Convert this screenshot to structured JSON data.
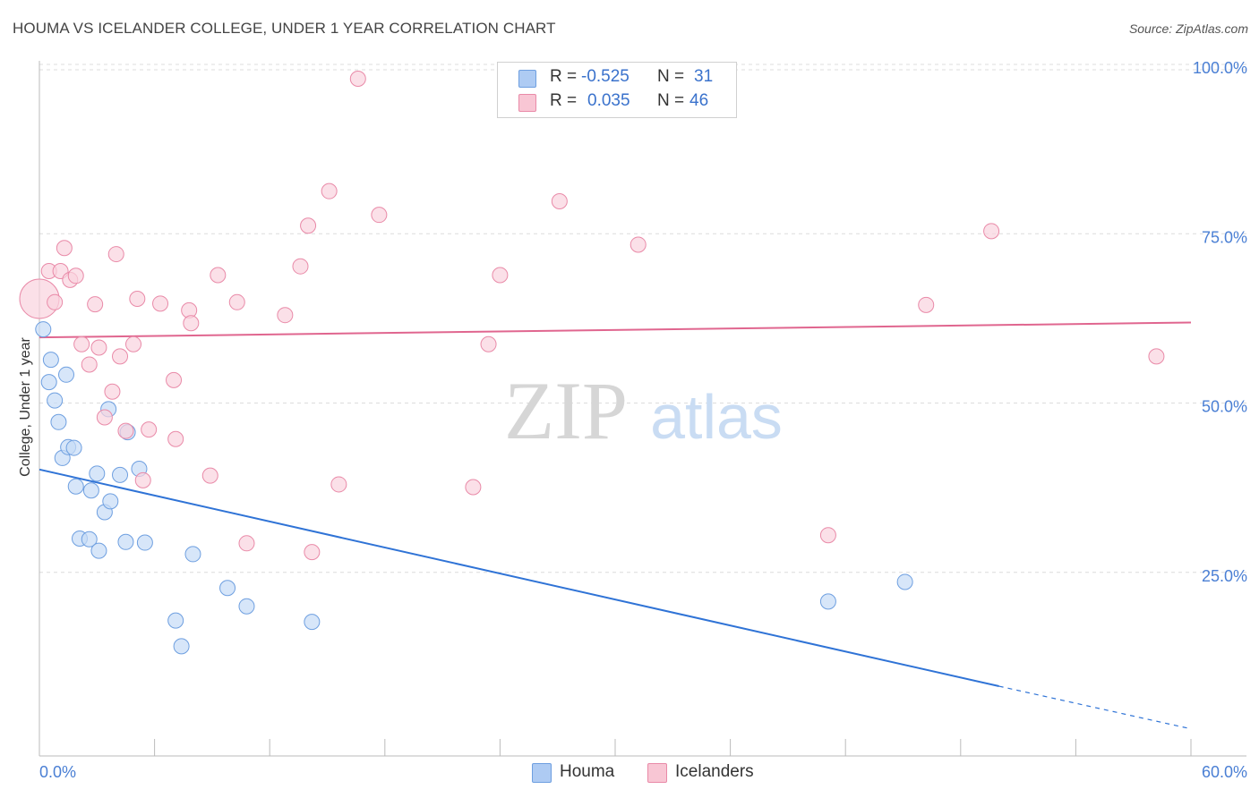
{
  "title": "HOUMA VS ICELANDER COLLEGE, UNDER 1 YEAR CORRELATION CHART",
  "source": "Source: ZipAtlas.com",
  "watermark": {
    "zip": "ZIP",
    "atlas": "atlas"
  },
  "legend": {
    "rows": [
      {
        "r_label": "R =",
        "r_value": "-0.525",
        "n_label": "N =",
        "n_value": "31",
        "color": "#aecbf3",
        "border": "#6e9fe0"
      },
      {
        "r_label": "R =",
        "r_value": "0.035",
        "n_label": "N =",
        "n_value": "46",
        "color": "#f8c6d4",
        "border": "#e98aa8"
      }
    ]
  },
  "bottom_legend": [
    {
      "label": "Houma",
      "color": "#aecbf3",
      "border": "#6e9fe0"
    },
    {
      "label": "Icelanders",
      "color": "#f8c6d4",
      "border": "#e98aa8"
    }
  ],
  "chart_data": {
    "type": "scatter",
    "title": "HOUMA VS ICELANDER COLLEGE, UNDER 1 YEAR CORRELATION CHART",
    "xlabel": "",
    "ylabel": "College, Under 1 year",
    "xlim": [
      0,
      60
    ],
    "ylim": [
      0,
      100
    ],
    "x_tick_labels": [
      "0.0%",
      "60.0%"
    ],
    "y_ticks": [
      25,
      50,
      75,
      100
    ],
    "y_tick_labels": [
      "25.0%",
      "50.0%",
      "75.0%",
      "100.0%"
    ],
    "grid": "horizontal dashed",
    "series": [
      {
        "name": "Houma",
        "color": "#6e9fe0",
        "fill": "#c6dbf7",
        "trend": {
          "x0": 0,
          "y0": 42.3,
          "x1": 50.0,
          "y1": 10.3,
          "dash_to_x": 60.0,
          "dash_to_y": 4.0,
          "color": "#2f73d6"
        },
        "points": [
          [
            0.2,
            63.0
          ],
          [
            0.5,
            55.2
          ],
          [
            0.6,
            58.5
          ],
          [
            0.8,
            52.5
          ],
          [
            1.0,
            49.3
          ],
          [
            1.2,
            44.0
          ],
          [
            1.4,
            56.3
          ],
          [
            1.5,
            45.6
          ],
          [
            1.8,
            45.5
          ],
          [
            1.9,
            39.8
          ],
          [
            2.1,
            32.1
          ],
          [
            2.6,
            32.0
          ],
          [
            2.7,
            39.2
          ],
          [
            3.0,
            41.7
          ],
          [
            3.1,
            30.3
          ],
          [
            3.4,
            36.0
          ],
          [
            3.7,
            37.6
          ],
          [
            3.6,
            51.2
          ],
          [
            4.2,
            41.5
          ],
          [
            4.5,
            31.6
          ],
          [
            4.6,
            47.8
          ],
          [
            5.2,
            42.4
          ],
          [
            5.5,
            31.5
          ],
          [
            7.1,
            20.0
          ],
          [
            7.4,
            16.2
          ],
          [
            8.0,
            29.8
          ],
          [
            9.8,
            24.8
          ],
          [
            10.8,
            22.1
          ],
          [
            14.2,
            19.8
          ],
          [
            41.1,
            22.8
          ],
          [
            45.1,
            25.7
          ]
        ]
      },
      {
        "name": "Icelanders",
        "color": "#e98aa8",
        "fill": "#f9d3de",
        "trend": {
          "x0": 0,
          "y0": 61.8,
          "x1": 60.0,
          "y1": 64.0,
          "color": "#e0668f"
        },
        "points": [
          [
            0.0,
            67.5
          ],
          [
            0.5,
            71.6
          ],
          [
            0.8,
            67.0
          ],
          [
            1.1,
            71.6
          ],
          [
            1.3,
            75.0
          ],
          [
            1.6,
            70.3
          ],
          [
            1.9,
            70.9
          ],
          [
            2.2,
            60.8
          ],
          [
            2.6,
            57.8
          ],
          [
            2.9,
            66.7
          ],
          [
            3.1,
            60.3
          ],
          [
            3.4,
            50.0
          ],
          [
            3.8,
            53.8
          ],
          [
            4.0,
            74.1
          ],
          [
            4.2,
            59.0
          ],
          [
            4.5,
            48.0
          ],
          [
            4.9,
            60.8
          ],
          [
            5.1,
            67.5
          ],
          [
            5.4,
            40.7
          ],
          [
            5.7,
            48.2
          ],
          [
            6.3,
            66.8
          ],
          [
            7.0,
            55.5
          ],
          [
            7.1,
            46.8
          ],
          [
            7.8,
            65.8
          ],
          [
            7.9,
            63.9
          ],
          [
            8.9,
            41.4
          ],
          [
            9.3,
            71.0
          ],
          [
            10.3,
            67.0
          ],
          [
            10.8,
            31.4
          ],
          [
            12.8,
            65.1
          ],
          [
            13.6,
            72.3
          ],
          [
            14.0,
            78.3
          ],
          [
            14.2,
            30.1
          ],
          [
            15.1,
            83.4
          ],
          [
            15.6,
            40.1
          ],
          [
            16.6,
            100.0
          ],
          [
            17.7,
            79.9
          ],
          [
            22.6,
            39.7
          ],
          [
            23.4,
            60.8
          ],
          [
            24.0,
            71.0
          ],
          [
            27.1,
            81.9
          ],
          [
            31.2,
            75.5
          ],
          [
            41.1,
            32.6
          ],
          [
            46.2,
            66.6
          ],
          [
            49.6,
            77.5
          ],
          [
            58.2,
            59.0
          ]
        ]
      }
    ]
  }
}
